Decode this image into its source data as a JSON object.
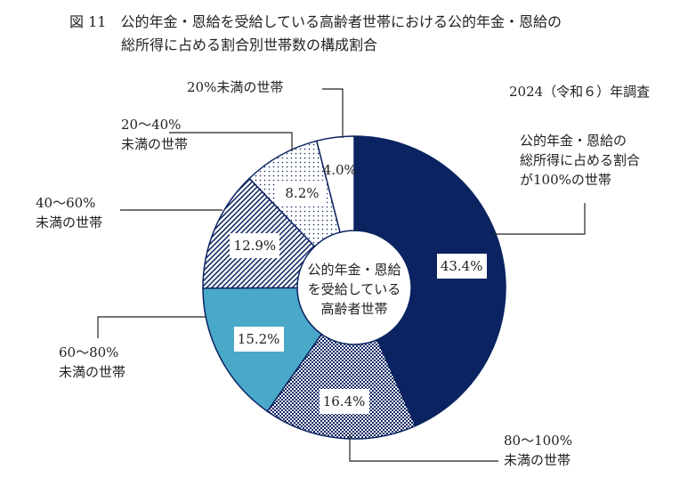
{
  "chart_data": {
    "type": "pie",
    "style": "donut",
    "title_line1": "図 11　公的年金・恩給を受給している高齢者世帯における公的年金・恩給の",
    "title_line2": "総所得に占める割合別世帯数の構成割合",
    "subtitle": "2024（令和６）年調査",
    "center_label": [
      "公的年金・恩給",
      "を受給している",
      "高齢者世帯"
    ],
    "slices": [
      {
        "label": [
          "公的年金・恩給の",
          "総所得に占める割合",
          "が100%の世帯"
        ],
        "value": 43.4,
        "value_label": "43.4%",
        "color": "#0b2461",
        "pattern": "solid"
      },
      {
        "label": [
          "80～100%",
          "未満の世帯"
        ],
        "value": 16.4,
        "value_label": "16.4%",
        "color": "#0b2461",
        "pattern": "checker"
      },
      {
        "label": [
          "60～80%",
          "未満の世帯"
        ],
        "value": 15.2,
        "value_label": "15.2%",
        "color": "#4aa8c8",
        "pattern": "solid"
      },
      {
        "label": [
          "40～60%",
          "未満の世帯"
        ],
        "value": 12.9,
        "value_label": "12.9%",
        "color": "#0b2461",
        "pattern": "diagonal"
      },
      {
        "label": [
          "20～40%",
          "未満の世帯"
        ],
        "value": 8.2,
        "value_label": "8.2%",
        "color": "#0b2461",
        "pattern": "dots"
      },
      {
        "label": [
          "20%未満の世帯"
        ],
        "value": 4.0,
        "value_label": "4.0%",
        "color": "#ffffff",
        "pattern": "solid"
      }
    ]
  }
}
